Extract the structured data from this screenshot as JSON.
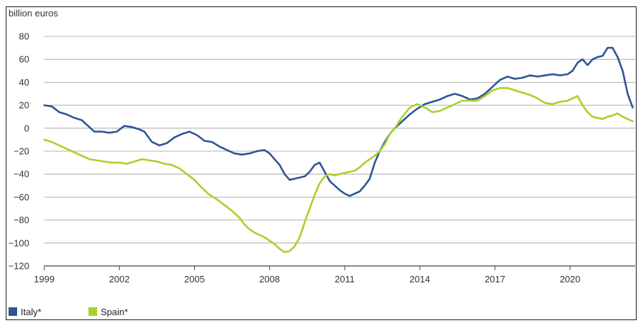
{
  "chart_data": {
    "type": "line",
    "ylabel": "billion euros",
    "ylim": [
      -120,
      80
    ],
    "yticks": [
      80,
      60,
      40,
      20,
      0,
      -20,
      -40,
      -60,
      -80,
      -100,
      -120
    ],
    "xlim": [
      1999,
      2022.6
    ],
    "xticks": [
      1999,
      2002,
      2005,
      2008,
      2011,
      2014,
      2017,
      2020
    ],
    "grid": true,
    "legend_position": "bottom-left",
    "series": [
      {
        "name": "Italy*",
        "color": "#2f5596",
        "x": [
          1999.0,
          1999.3,
          1999.6,
          1999.9,
          2000.2,
          2000.5,
          2000.8,
          2001.0,
          2001.3,
          2001.6,
          2001.9,
          2002.2,
          2002.5,
          2002.8,
          2003.0,
          2003.3,
          2003.6,
          2003.9,
          2004.2,
          2004.5,
          2004.8,
          2005.1,
          2005.4,
          2005.7,
          2006.0,
          2006.3,
          2006.6,
          2006.9,
          2007.2,
          2007.5,
          2007.8,
          2008.0,
          2008.2,
          2008.4,
          2008.6,
          2008.8,
          2009.0,
          2009.2,
          2009.4,
          2009.6,
          2009.8,
          2010.0,
          2010.2,
          2010.4,
          2010.6,
          2010.8,
          2011.0,
          2011.2,
          2011.4,
          2011.6,
          2011.8,
          2012.0,
          2012.2,
          2012.4,
          2012.6,
          2012.8,
          2013.0,
          2013.3,
          2013.6,
          2013.9,
          2014.2,
          2014.5,
          2014.8,
          2015.1,
          2015.4,
          2015.7,
          2016.0,
          2016.3,
          2016.6,
          2016.9,
          2017.2,
          2017.5,
          2017.8,
          2018.1,
          2018.4,
          2018.7,
          2019.0,
          2019.3,
          2019.6,
          2019.9,
          2020.1,
          2020.3,
          2020.5,
          2020.7,
          2020.9,
          2021.1,
          2021.3,
          2021.5,
          2021.7,
          2021.9,
          2022.1,
          2022.3,
          2022.5
        ],
        "values": [
          20,
          19,
          14,
          12,
          9,
          7,
          1,
          -3,
          -3,
          -4,
          -3,
          2,
          1,
          -1,
          -3,
          -12,
          -15,
          -13,
          -8,
          -5,
          -3,
          -6,
          -11,
          -12,
          -16,
          -19,
          -22,
          -23,
          -22,
          -20,
          -19,
          -22,
          -27,
          -32,
          -40,
          -45,
          -44,
          -43,
          -42,
          -38,
          -32,
          -30,
          -38,
          -46,
          -50,
          -54,
          -57,
          -59,
          -57,
          -55,
          -50,
          -44,
          -30,
          -20,
          -12,
          -5,
          0,
          6,
          12,
          17,
          21,
          23,
          25,
          28,
          30,
          28,
          25,
          26,
          30,
          36,
          42,
          45,
          43,
          44,
          46,
          45,
          46,
          47,
          46,
          47,
          50,
          57,
          60,
          55,
          60,
          62,
          63,
          70,
          70,
          62,
          50,
          30,
          18
        ]
      },
      {
        "name": "Spain*",
        "color": "#a8d12b",
        "x": [
          1999.0,
          1999.3,
          1999.6,
          1999.9,
          2000.2,
          2000.5,
          2000.8,
          2001.1,
          2001.4,
          2001.7,
          2002.0,
          2002.3,
          2002.6,
          2002.9,
          2003.2,
          2003.5,
          2003.8,
          2004.1,
          2004.4,
          2004.7,
          2005.0,
          2005.3,
          2005.6,
          2005.9,
          2006.2,
          2006.5,
          2006.8,
          2007.0,
          2007.2,
          2007.4,
          2007.6,
          2007.8,
          2008.0,
          2008.2,
          2008.4,
          2008.6,
          2008.8,
          2009.0,
          2009.2,
          2009.4,
          2009.6,
          2009.8,
          2010.0,
          2010.2,
          2010.4,
          2010.6,
          2010.8,
          2011.0,
          2011.2,
          2011.4,
          2011.6,
          2011.8,
          2012.0,
          2012.2,
          2012.4,
          2012.6,
          2012.8,
          2013.0,
          2013.3,
          2013.6,
          2013.9,
          2014.2,
          2014.5,
          2014.8,
          2015.1,
          2015.4,
          2015.7,
          2016.0,
          2016.3,
          2016.6,
          2016.9,
          2017.2,
          2017.5,
          2017.8,
          2018.1,
          2018.4,
          2018.7,
          2019.0,
          2019.3,
          2019.6,
          2019.9,
          2020.1,
          2020.3,
          2020.5,
          2020.7,
          2020.9,
          2021.1,
          2021.3,
          2021.5,
          2021.7,
          2021.9,
          2022.1,
          2022.3,
          2022.5
        ],
        "values": [
          -10,
          -12,
          -15,
          -18,
          -21,
          -24,
          -27,
          -28,
          -29,
          -30,
          -30,
          -31,
          -29,
          -27,
          -28,
          -29,
          -31,
          -32,
          -35,
          -40,
          -45,
          -52,
          -58,
          -62,
          -67,
          -72,
          -78,
          -84,
          -88,
          -91,
          -93,
          -95,
          -98,
          -101,
          -105,
          -108,
          -107,
          -103,
          -95,
          -82,
          -70,
          -58,
          -48,
          -42,
          -40,
          -41,
          -40,
          -39,
          -38,
          -37,
          -34,
          -30,
          -27,
          -24,
          -20,
          -14,
          -5,
          0,
          10,
          18,
          21,
          18,
          14,
          15,
          18,
          21,
          24,
          24,
          24,
          28,
          33,
          35,
          35,
          33,
          31,
          29,
          26,
          22,
          21,
          23,
          24,
          26,
          28,
          20,
          14,
          10,
          9,
          8,
          10,
          11,
          13,
          10,
          8,
          6
        ]
      }
    ]
  }
}
